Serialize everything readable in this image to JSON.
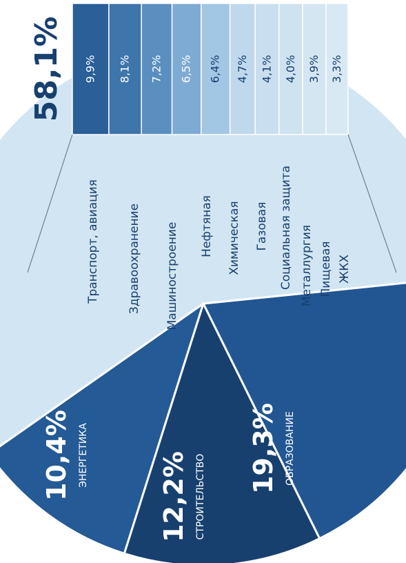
{
  "chart_data": {
    "type": "pie",
    "title": "",
    "main_slices": [
      {
        "value": 10.4,
        "value_label": "10,4%",
        "label": "ЭНЕРГЕТИКА",
        "color": "#245a95"
      },
      {
        "value": 12.2,
        "value_label": "12,2%",
        "label": "СТРОИТЕЛЬСТВО",
        "color": "#17406f"
      },
      {
        "value": 19.3,
        "value_label": "19,3%",
        "label": "ОБРАЗОВАНИЕ",
        "color": "#225693"
      },
      {
        "value": 58.1,
        "value_label": "58,1%",
        "label": "",
        "color": "#d2e5f2"
      }
    ],
    "breakdown": {
      "total_label": "58,1%",
      "items": [
        {
          "label": "Транспорт, авиация",
          "value": 9.9,
          "value_label": "9,9%",
          "color": "#2a5f98"
        },
        {
          "label": "Здравоохранение",
          "value": 8.1,
          "value_label": "8,1%",
          "color": "#3e75ab"
        },
        {
          "label": "Машиностроение",
          "value": 7.2,
          "value_label": "7,2%",
          "color": "#5a8fc0"
        },
        {
          "label": "Нефтяная",
          "value": 6.5,
          "value_label": "6,5%",
          "color": "#7eabd3"
        },
        {
          "label": "Химическая",
          "value": 6.4,
          "value_label": "6,4%",
          "color": "#a2c7e4"
        },
        {
          "label": "Газовая",
          "value": 4.7,
          "value_label": "4,7%",
          "color": "#bfd8ec"
        },
        {
          "label": "Социальная защита",
          "value": 4.1,
          "value_label": "4,1%",
          "color": "#c9deee"
        },
        {
          "label": "Металлургия",
          "value": 4.0,
          "value_label": "4,0%",
          "color": "#cfe2f0"
        },
        {
          "label": "Пищевая",
          "value": 3.9,
          "value_label": "3,9%",
          "color": "#d4e6f2"
        },
        {
          "label": "ЖКХ",
          "value": 3.3,
          "value_label": "3,3%",
          "color": "#d9e9f4"
        }
      ]
    },
    "colors": {
      "dark_text": "#17406f",
      "light_text": "#ffffff",
      "connector": "#6f7f90"
    }
  }
}
